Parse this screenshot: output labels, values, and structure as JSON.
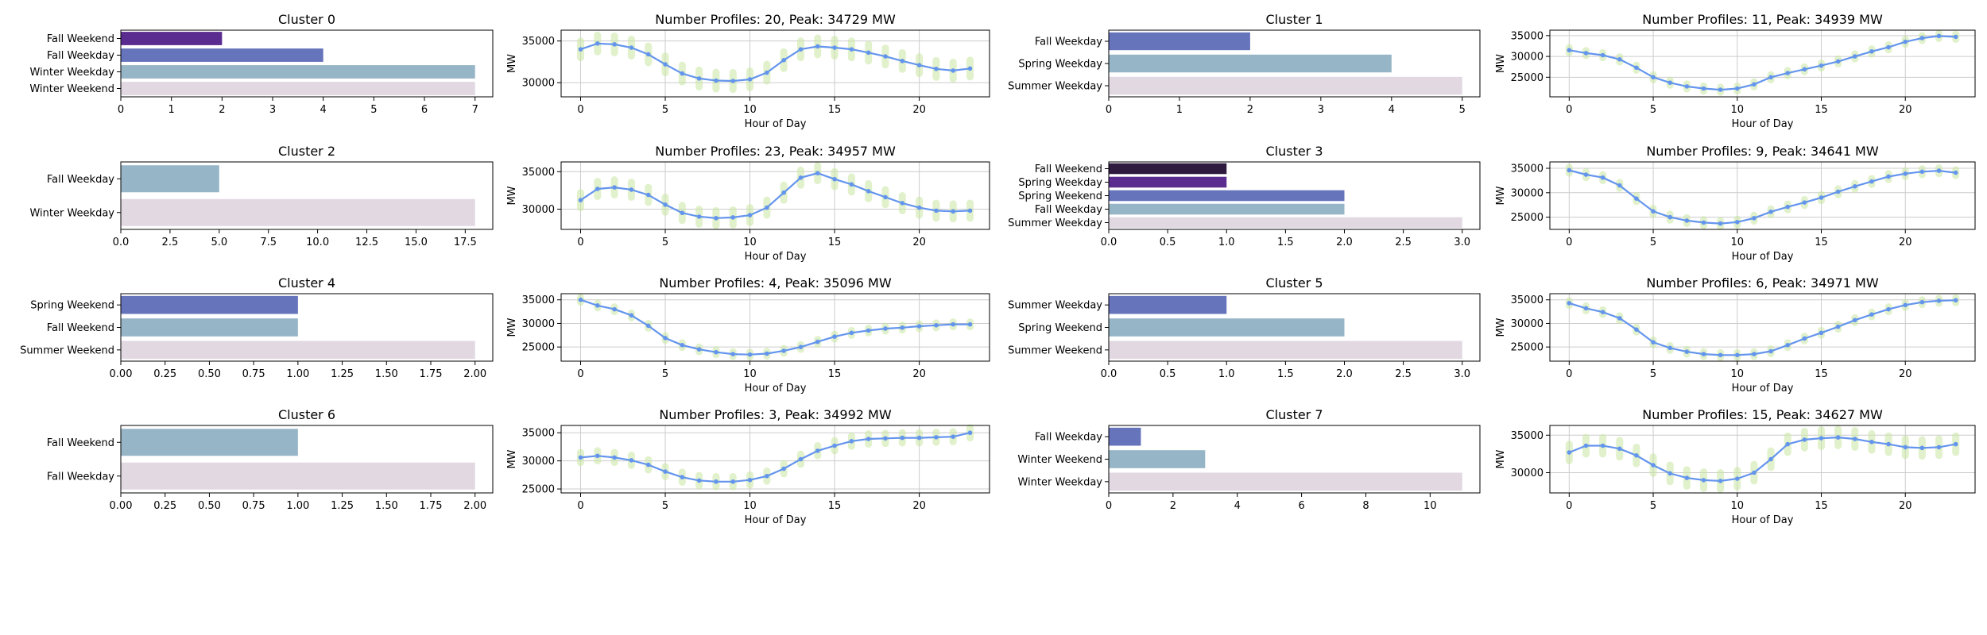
{
  "colors": {
    "line": "#6495ed",
    "envelope": "#c8e6a0",
    "grid": "#cccccc",
    "frame": "#000000"
  },
  "chart_data": [
    {
      "type": "bar",
      "orientation": "horizontal",
      "title": "Cluster 0",
      "categories": [
        "Fall Weekend",
        "Fall Weekday",
        "Winter Weekday",
        "Winter Weekend"
      ],
      "values": [
        2,
        4,
        7,
        7
      ],
      "colors": [
        "#5b2c8f",
        "#6674bb",
        "#96b6c8",
        "#e2d8e2"
      ],
      "xlim": [
        0,
        7.35
      ],
      "xticks": [
        0,
        1,
        2,
        3,
        4,
        5,
        6,
        7
      ],
      "xtick_labels": [
        "0",
        "1",
        "2",
        "3",
        "4",
        "5",
        "6",
        "7"
      ]
    },
    {
      "type": "line",
      "title": "Number Profiles: 20, Peak: 34729 MW",
      "xlabel": "Hour of Day",
      "ylabel": "MW",
      "x": [
        0,
        1,
        2,
        3,
        4,
        5,
        6,
        7,
        8,
        9,
        10,
        11,
        12,
        13,
        14,
        15,
        16,
        17,
        18,
        19,
        20,
        21,
        22,
        23
      ],
      "y": [
        34000,
        34700,
        34600,
        34200,
        33400,
        32200,
        31100,
        30500,
        30250,
        30200,
        30400,
        31200,
        32700,
        34000,
        34350,
        34200,
        34000,
        33600,
        33150,
        32600,
        32100,
        31650,
        31450,
        31700
      ],
      "envelope_halfwidth": 1000,
      "ylim": [
        28300,
        36300
      ],
      "yticks": [
        30000,
        35000
      ],
      "ytick_labels": [
        "30000",
        "35000"
      ],
      "xlim": [
        -1.15,
        24.15
      ],
      "xticks": [
        0,
        5,
        10,
        15,
        20
      ],
      "xtick_labels": [
        "0",
        "5",
        "10",
        "15",
        "20"
      ]
    },
    {
      "type": "bar",
      "orientation": "horizontal",
      "title": "Cluster 1",
      "categories": [
        "Fall Weekday",
        "Spring Weekday",
        "Summer Weekday"
      ],
      "values": [
        2,
        4,
        5
      ],
      "colors": [
        "#6674bb",
        "#96b6c8",
        "#e2d8e2"
      ],
      "xlim": [
        0,
        5.25
      ],
      "xticks": [
        0,
        1,
        2,
        3,
        4,
        5
      ],
      "xtick_labels": [
        "0",
        "1",
        "2",
        "3",
        "4",
        "5"
      ]
    },
    {
      "type": "line",
      "title": "Number Profiles: 11, Peak: 34939 MW",
      "xlabel": "Hour of Day",
      "ylabel": "MW",
      "x": [
        0,
        1,
        2,
        3,
        4,
        5,
        6,
        7,
        8,
        9,
        10,
        11,
        12,
        13,
        14,
        15,
        16,
        17,
        18,
        19,
        20,
        21,
        22,
        23
      ],
      "y": [
        31500,
        30800,
        30300,
        29300,
        27300,
        25000,
        23700,
        22800,
        22300,
        22000,
        22300,
        23300,
        25000,
        26000,
        26900,
        27800,
        28800,
        30000,
        31200,
        32200,
        33500,
        34400,
        34900,
        34700
      ],
      "envelope_halfwidth": 600,
      "ylim": [
        20300,
        36300
      ],
      "yticks": [
        25000,
        30000,
        35000
      ],
      "ytick_labels": [
        "25000",
        "30000",
        "35000"
      ],
      "xlim": [
        -1.15,
        24.15
      ],
      "xticks": [
        0,
        5,
        10,
        15,
        20
      ],
      "xtick_labels": [
        "0",
        "5",
        "10",
        "15",
        "20"
      ]
    },
    {
      "type": "bar",
      "orientation": "horizontal",
      "title": "Cluster 2",
      "categories": [
        "Fall Weekday",
        "Winter Weekday"
      ],
      "values": [
        5,
        18
      ],
      "colors": [
        "#96b6c8",
        "#e2d8e2"
      ],
      "xlim": [
        0,
        18.9
      ],
      "xticks": [
        0,
        2.5,
        5,
        7.5,
        10,
        12.5,
        15,
        17.5
      ],
      "xtick_labels": [
        "0.0",
        "2.5",
        "5.0",
        "7.5",
        "10.0",
        "12.5",
        "15.0",
        "17.5"
      ]
    },
    {
      "type": "line",
      "title": "Number Profiles: 23, Peak: 34957 MW",
      "xlabel": "Hour of Day",
      "ylabel": "MW",
      "x": [
        0,
        1,
        2,
        3,
        4,
        5,
        6,
        7,
        8,
        9,
        10,
        11,
        12,
        13,
        14,
        15,
        16,
        17,
        18,
        19,
        20,
        21,
        22,
        23
      ],
      "y": [
        31200,
        32700,
        32900,
        32600,
        31900,
        30600,
        29500,
        29000,
        28800,
        28900,
        29200,
        30200,
        32200,
        34200,
        34800,
        34000,
        33300,
        32400,
        31600,
        30800,
        30200,
        29800,
        29700,
        29800
      ],
      "envelope_halfwidth": 1000,
      "ylim": [
        27300,
        36300
      ],
      "yticks": [
        30000,
        35000
      ],
      "ytick_labels": [
        "30000",
        "35000"
      ],
      "xlim": [
        -1.15,
        24.15
      ],
      "xticks": [
        0,
        5,
        10,
        15,
        20
      ],
      "xtick_labels": [
        "0",
        "5",
        "10",
        "15",
        "20"
      ]
    },
    {
      "type": "bar",
      "orientation": "horizontal",
      "title": "Cluster 3",
      "categories": [
        "Fall Weekend",
        "Spring Weekday",
        "Spring Weekend",
        "Fall Weekday",
        "Summer Weekday"
      ],
      "values": [
        1,
        1,
        2,
        2,
        3
      ],
      "colors": [
        "#2e1a3e",
        "#5b2c8f",
        "#6674bb",
        "#96b6c8",
        "#e2d8e2"
      ],
      "xlim": [
        0,
        3.15
      ],
      "xticks": [
        0,
        0.5,
        1,
        1.5,
        2,
        2.5,
        3
      ],
      "xtick_labels": [
        "0.0",
        "0.5",
        "1.0",
        "1.5",
        "2.0",
        "2.5",
        "3.0"
      ]
    },
    {
      "type": "line",
      "title": "Number Profiles: 9, Peak: 34641 MW",
      "xlabel": "Hour of Day",
      "ylabel": "MW",
      "x": [
        0,
        1,
        2,
        3,
        4,
        5,
        6,
        7,
        8,
        9,
        10,
        11,
        12,
        13,
        14,
        15,
        16,
        17,
        18,
        19,
        20,
        21,
        22,
        23
      ],
      "y": [
        34600,
        33700,
        33100,
        31500,
        28800,
        26200,
        25000,
        24300,
        23900,
        23700,
        24000,
        24800,
        26100,
        27100,
        28000,
        29000,
        30200,
        31300,
        32300,
        33300,
        33900,
        34300,
        34500,
        34100
      ],
      "envelope_halfwidth": 600,
      "ylim": [
        22500,
        36300
      ],
      "yticks": [
        25000,
        30000,
        35000
      ],
      "ytick_labels": [
        "25000",
        "30000",
        "35000"
      ],
      "xlim": [
        -1.15,
        24.15
      ],
      "xticks": [
        0,
        5,
        10,
        15,
        20
      ],
      "xtick_labels": [
        "0",
        "5",
        "10",
        "15",
        "20"
      ]
    },
    {
      "type": "bar",
      "orientation": "horizontal",
      "title": "Cluster 4",
      "categories": [
        "Spring Weekend",
        "Fall Weekend",
        "Summer Weekend"
      ],
      "values": [
        1,
        1,
        2
      ],
      "colors": [
        "#6674bb",
        "#96b6c8",
        "#e2d8e2"
      ],
      "xlim": [
        0,
        2.1
      ],
      "xticks": [
        0,
        0.25,
        0.5,
        0.75,
        1,
        1.25,
        1.5,
        1.75,
        2
      ],
      "xtick_labels": [
        "0.00",
        "0.25",
        "0.50",
        "0.75",
        "1.00",
        "1.25",
        "1.50",
        "1.75",
        "2.00"
      ]
    },
    {
      "type": "line",
      "title": "Number Profiles: 4, Peak: 35096 MW",
      "xlabel": "Hour of Day",
      "ylabel": "MW",
      "x": [
        0,
        1,
        2,
        3,
        4,
        5,
        6,
        7,
        8,
        9,
        10,
        11,
        12,
        13,
        14,
        15,
        16,
        17,
        18,
        19,
        20,
        21,
        22,
        23
      ],
      "y": [
        35000,
        33800,
        33000,
        31700,
        29500,
        26900,
        25400,
        24500,
        23900,
        23500,
        23400,
        23600,
        24200,
        25000,
        26100,
        27200,
        28000,
        28500,
        28900,
        29100,
        29400,
        29600,
        29800,
        29800
      ],
      "envelope_halfwidth": 500,
      "ylim": [
        22000,
        36300
      ],
      "yticks": [
        25000,
        30000,
        35000
      ],
      "ytick_labels": [
        "25000",
        "30000",
        "35000"
      ],
      "xlim": [
        -1.15,
        24.15
      ],
      "xticks": [
        0,
        5,
        10,
        15,
        20
      ],
      "xtick_labels": [
        "0",
        "5",
        "10",
        "15",
        "20"
      ]
    },
    {
      "type": "bar",
      "orientation": "horizontal",
      "title": "Cluster 5",
      "categories": [
        "Summer Weekday",
        "Spring Weekend",
        "Summer Weekend"
      ],
      "values": [
        1,
        2,
        3
      ],
      "colors": [
        "#6674bb",
        "#96b6c8",
        "#e2d8e2"
      ],
      "xlim": [
        0,
        3.15
      ],
      "xticks": [
        0,
        0.5,
        1,
        1.5,
        2,
        2.5,
        3
      ],
      "xtick_labels": [
        "0.0",
        "0.5",
        "1.0",
        "1.5",
        "2.0",
        "2.5",
        "3.0"
      ]
    },
    {
      "type": "line",
      "title": "Number Profiles: 6, Peak: 34971 MW",
      "xlabel": "Hour of Day",
      "ylabel": "MW",
      "x": [
        0,
        1,
        2,
        3,
        4,
        5,
        6,
        7,
        8,
        9,
        10,
        11,
        12,
        13,
        14,
        15,
        16,
        17,
        18,
        19,
        20,
        21,
        22,
        23
      ],
      "y": [
        34300,
        33200,
        32400,
        31100,
        28700,
        26000,
        24800,
        24000,
        23500,
        23300,
        23300,
        23500,
        24100,
        25400,
        26800,
        28000,
        29300,
        30700,
        31900,
        33000,
        33900,
        34500,
        34800,
        34900
      ],
      "envelope_halfwidth": 500,
      "ylim": [
        22000,
        36300
      ],
      "yticks": [
        25000,
        30000,
        35000
      ],
      "ytick_labels": [
        "25000",
        "30000",
        "35000"
      ],
      "xlim": [
        -1.15,
        24.15
      ],
      "xticks": [
        0,
        5,
        10,
        15,
        20
      ],
      "xtick_labels": [
        "0",
        "5",
        "10",
        "15",
        "20"
      ]
    },
    {
      "type": "bar",
      "orientation": "horizontal",
      "title": "Cluster 6",
      "categories": [
        "Fall Weekend",
        "Fall Weekday"
      ],
      "values": [
        1,
        2
      ],
      "colors": [
        "#96b6c8",
        "#e2d8e2"
      ],
      "xlim": [
        0,
        2.1
      ],
      "xticks": [
        0,
        0.25,
        0.5,
        0.75,
        1,
        1.25,
        1.5,
        1.75,
        2
      ],
      "xtick_labels": [
        "0.00",
        "0.25",
        "0.50",
        "0.75",
        "1.00",
        "1.25",
        "1.50",
        "1.75",
        "2.00"
      ]
    },
    {
      "type": "line",
      "title": "Number Profiles: 3, Peak: 34992 MW",
      "xlabel": "Hour of Day",
      "ylabel": "MW",
      "x": [
        0,
        1,
        2,
        3,
        4,
        5,
        6,
        7,
        8,
        9,
        10,
        11,
        12,
        13,
        14,
        15,
        16,
        17,
        18,
        19,
        20,
        21,
        22,
        23
      ],
      "y": [
        30600,
        30900,
        30600,
        30100,
        29300,
        28100,
        27100,
        26500,
        26300,
        26300,
        26600,
        27300,
        28600,
        30300,
        31800,
        32700,
        33500,
        33900,
        34000,
        34100,
        34100,
        34200,
        34300,
        35000
      ],
      "envelope_halfwidth": 900,
      "ylim": [
        24300,
        36300
      ],
      "yticks": [
        25000,
        30000,
        35000
      ],
      "ytick_labels": [
        "25000",
        "30000",
        "35000"
      ],
      "xlim": [
        -1.15,
        24.15
      ],
      "xticks": [
        0,
        5,
        10,
        15,
        20
      ],
      "xtick_labels": [
        "0",
        "5",
        "10",
        "15",
        "20"
      ]
    },
    {
      "type": "bar",
      "orientation": "horizontal",
      "title": "Cluster 7",
      "categories": [
        "Fall Weekday",
        "Winter Weekend",
        "Winter Weekday"
      ],
      "values": [
        1,
        3,
        11
      ],
      "colors": [
        "#6674bb",
        "#96b6c8",
        "#e2d8e2"
      ],
      "xlim": [
        0,
        11.55
      ],
      "xticks": [
        0,
        2,
        4,
        6,
        8,
        10
      ],
      "xtick_labels": [
        "0",
        "2",
        "4",
        "6",
        "8",
        "10"
      ]
    },
    {
      "type": "line",
      "title": "Number Profiles: 15, Peak: 34627 MW",
      "xlabel": "Hour of Day",
      "ylabel": "MW",
      "x": [
        0,
        1,
        2,
        3,
        4,
        5,
        6,
        7,
        8,
        9,
        10,
        11,
        12,
        13,
        14,
        15,
        16,
        17,
        18,
        19,
        20,
        21,
        22,
        23
      ],
      "y": [
        32700,
        33600,
        33600,
        33200,
        32300,
        31000,
        29900,
        29300,
        29000,
        28900,
        29200,
        30000,
        31800,
        33800,
        34400,
        34600,
        34700,
        34500,
        34100,
        33800,
        33400,
        33300,
        33400,
        33800
      ],
      "envelope_halfwidth": 1100,
      "ylim": [
        27300,
        36300
      ],
      "yticks": [
        30000,
        35000
      ],
      "ytick_labels": [
        "30000",
        "35000"
      ],
      "xlim": [
        -1.15,
        24.15
      ],
      "xticks": [
        0,
        5,
        10,
        15,
        20
      ],
      "xtick_labels": [
        "0",
        "5",
        "10",
        "15",
        "20"
      ]
    }
  ]
}
